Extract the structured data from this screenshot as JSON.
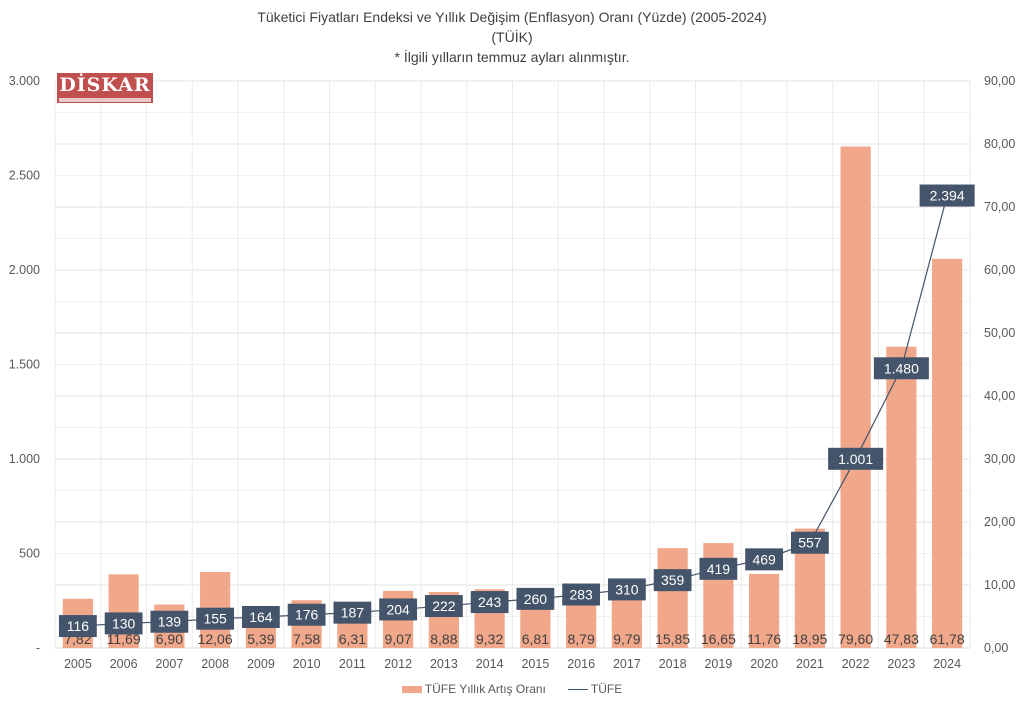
{
  "title_lines": [
    "Tüketici Fiyatları Endeksi ve Yıllık Değişim (Enflasyon) Oranı (Yüzde) (2005-2024)",
    "(TÜİK)",
    "* İlgili yılların temmuz ayları alınmıştır."
  ],
  "logo": {
    "text": "DİSKAR"
  },
  "colors": {
    "bar": "#F0A78A",
    "line": "#44546A",
    "label_box": "#44546A",
    "grid": "#E6E6E6"
  },
  "chart_data": {
    "type": "bar+line",
    "title": "Tüketici Fiyatları Endeksi ve Yıllık Değişim (Enflasyon) Oranı (Yüzde) (2005-2024)",
    "categories": [
      "2005",
      "2006",
      "2007",
      "2008",
      "2009",
      "2010",
      "2011",
      "2012",
      "2013",
      "2014",
      "2015",
      "2016",
      "2017",
      "2018",
      "2019",
      "2020",
      "2021",
      "2022",
      "2023",
      "2024"
    ],
    "series": [
      {
        "name": "TÜFE Yıllık Artış Oranı",
        "type": "bar",
        "axis": "right",
        "values": [
          7.82,
          11.69,
          6.9,
          12.06,
          5.39,
          7.58,
          6.31,
          9.07,
          8.88,
          9.32,
          6.81,
          8.79,
          9.79,
          15.85,
          16.65,
          11.76,
          18.95,
          79.6,
          47.83,
          61.78
        ],
        "labels": [
          "7,82",
          "11,69",
          "6,90",
          "12,06",
          "5,39",
          "7,58",
          "6,31",
          "9,07",
          "8,88",
          "9,32",
          "6,81",
          "8,79",
          "9,79",
          "15,85",
          "16,65",
          "11,76",
          "18,95",
          "79,60",
          "47,83",
          "61,78"
        ]
      },
      {
        "name": "TÜFE",
        "type": "line",
        "axis": "left",
        "values": [
          116,
          130,
          139,
          155,
          164,
          176,
          187,
          204,
          222,
          243,
          260,
          283,
          310,
          359,
          419,
          469,
          557,
          1001,
          1480,
          2394
        ],
        "labels": [
          "116",
          "130",
          "139",
          "155",
          "164",
          "176",
          "187",
          "204",
          "222",
          "243",
          "260",
          "283",
          "310",
          "359",
          "419",
          "469",
          "557",
          "1.001",
          "1.480",
          "2.394"
        ]
      }
    ],
    "y_left": {
      "ylim": [
        0,
        3000
      ],
      "ticks": [
        0,
        500,
        1000,
        1500,
        2000,
        2500,
        3000
      ],
      "tick_labels": [
        "-",
        "500",
        "1.000",
        "1.500",
        "2.000",
        "2.500",
        "3.000"
      ]
    },
    "y_right": {
      "ylim": [
        0,
        90
      ],
      "ticks": [
        0,
        10,
        20,
        30,
        40,
        50,
        60,
        70,
        80,
        90
      ],
      "tick_labels": [
        "0,00",
        "10,00",
        "20,00",
        "30,00",
        "40,00",
        "50,00",
        "60,00",
        "70,00",
        "80,00",
        "90,00"
      ]
    },
    "grid": true,
    "legend": {
      "position": "bottom",
      "entries": [
        "TÜFE Yıllık Artış Oranı",
        "TÜFE"
      ]
    }
  }
}
